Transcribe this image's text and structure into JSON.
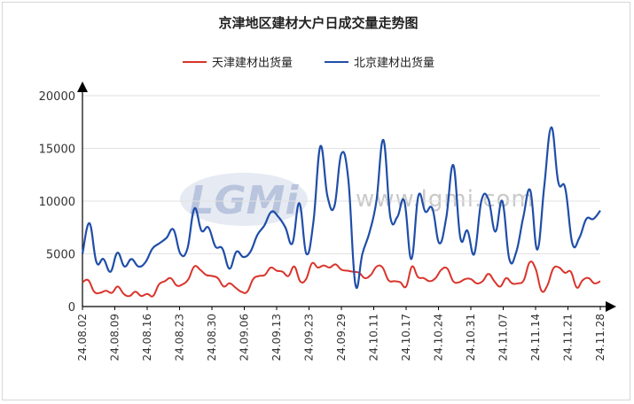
{
  "chart_data": {
    "type": "line",
    "title": "京津地区建材大户日成交量走势图",
    "xlabel": "",
    "ylabel": "",
    "ylim": [
      0,
      20000
    ],
    "yticks": [
      0,
      5000,
      10000,
      15000,
      20000
    ],
    "xtick_labels": [
      "24.08.02",
      "24.08.09",
      "24.08.16",
      "24.08.23",
      "24.08.30",
      "24.09.06",
      "24.09.13",
      "24.09.23",
      "24.09.29",
      "24.10.11",
      "24.10.17",
      "24.10.24",
      "24.10.31",
      "24.11.07",
      "24.11.14",
      "24.11.21",
      "24.11.28"
    ],
    "legend_position": "top-center",
    "grid": true,
    "colors": {
      "tianjin": "#d9342b",
      "beijing": "#1f4ea8"
    },
    "series": [
      {
        "name": "天津建材出货量",
        "color": "#d9342b",
        "values": [
          2300,
          2500,
          1400,
          1300,
          1500,
          1300,
          1900,
          1200,
          1000,
          1400,
          1000,
          1200,
          1000,
          2100,
          2400,
          2700,
          2000,
          2100,
          2600,
          3800,
          3500,
          3000,
          2900,
          2700,
          1900,
          2200,
          1800,
          1400,
          1400,
          2600,
          2900,
          3000,
          3700,
          3400,
          3300,
          2900,
          3800,
          2400,
          2600,
          4100,
          3700,
          3900,
          3700,
          4000,
          3500,
          3400,
          3300,
          3200,
          2700,
          3000,
          3800,
          3700,
          2500,
          2400,
          2300,
          1900,
          3800,
          2800,
          2700,
          2400,
          2700,
          3500,
          3600,
          2400,
          2300,
          2600,
          2600,
          2200,
          2400,
          3100,
          2400,
          1900,
          2700,
          2200,
          2200,
          2500,
          4200,
          3600,
          1500,
          2000,
          3600,
          3700,
          3200,
          3300,
          1800,
          2500,
          2700,
          2200,
          2400
        ]
      },
      {
        "name": "北京建材出货量",
        "color": "#1f4ea8",
        "values": [
          5000,
          7900,
          4200,
          4500,
          3300,
          5100,
          3800,
          4500,
          3800,
          4200,
          5500,
          6000,
          6500,
          7300,
          5000,
          5500,
          9300,
          7200,
          7500,
          5700,
          5500,
          3600,
          5200,
          4700,
          5200,
          6800,
          7700,
          9000,
          8500,
          7500,
          6000,
          9800,
          5000,
          8000,
          15200,
          10500,
          9500,
          14500,
          12000,
          2100,
          5000,
          7000,
          10000,
          15800,
          8500,
          8500,
          10000,
          4500,
          10500,
          9000,
          9300,
          6000,
          8500,
          13400,
          6500,
          7200,
          5000,
          10000,
          10200,
          7100,
          10000,
          4500,
          5200,
          8500,
          11000,
          5400,
          11500,
          17000,
          11800,
          11200,
          6000,
          6500,
          8300,
          8300,
          9100
        ]
      }
    ]
  },
  "watermark": {
    "logo_text": "LGMi",
    "url_text": "www.lgmi.com"
  }
}
